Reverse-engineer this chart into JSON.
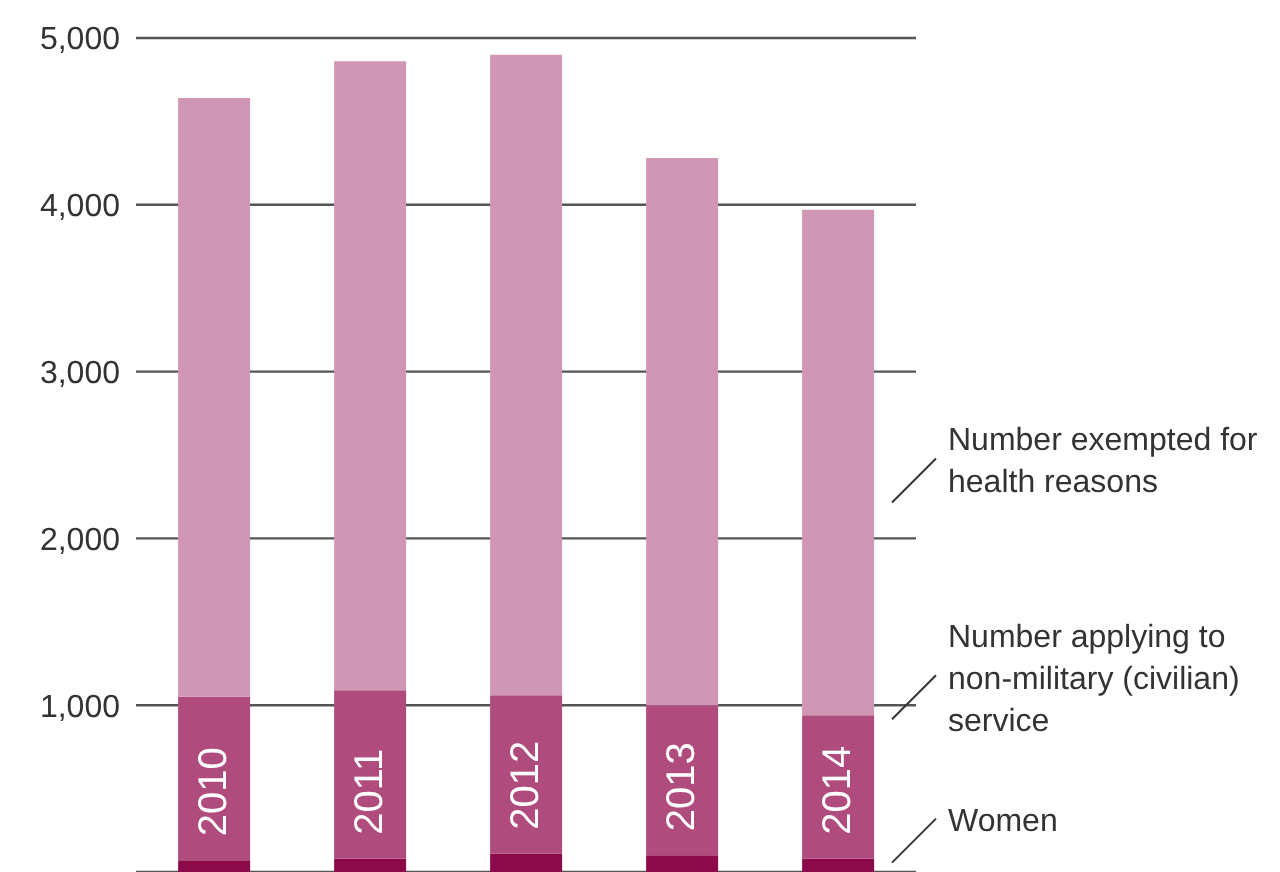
{
  "chart_data": {
    "type": "bar",
    "stacked": true,
    "categories": [
      "2010",
      "2011",
      "2012",
      "2013",
      "2014"
    ],
    "series": [
      {
        "name": "Women",
        "color": "#8c0a4a",
        "values": [
          70,
          80,
          110,
          100,
          80
        ]
      },
      {
        "name": "Number applying to non-military (civilian) service",
        "color": "#b04b7d",
        "values": [
          980,
          1010,
          950,
          900,
          860
        ]
      },
      {
        "name": "Number exempted for health reasons",
        "color": "#d097b4",
        "values": [
          3590,
          3770,
          3840,
          3280,
          3030
        ]
      }
    ],
    "ylim": [
      0,
      5000
    ],
    "yticks": [
      {
        "value": 0,
        "label": null
      },
      {
        "value": 1000,
        "label": "1,000"
      },
      {
        "value": 2000,
        "label": "2,000"
      },
      {
        "value": 3000,
        "label": "3,000"
      },
      {
        "value": 4000,
        "label": "4,000"
      },
      {
        "value": 5000,
        "label": "5,000"
      }
    ],
    "grid": "y"
  }
}
